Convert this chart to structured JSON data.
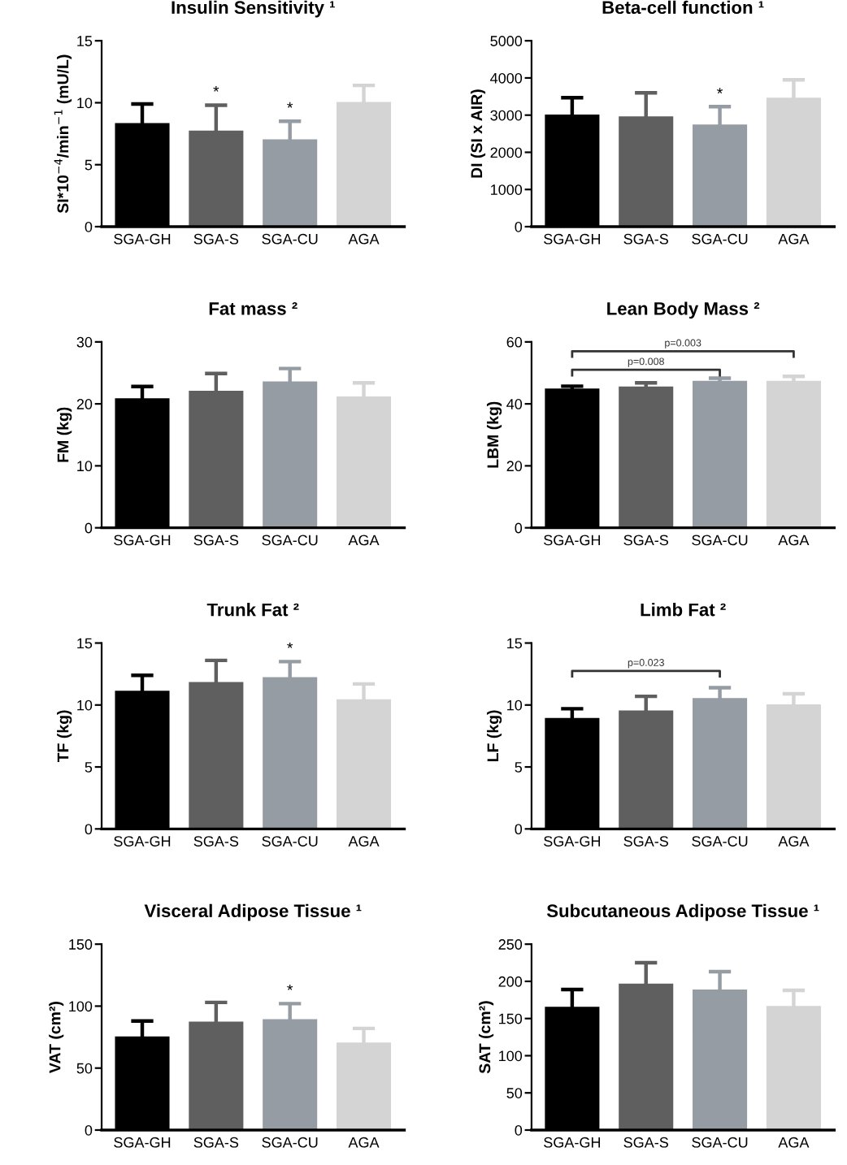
{
  "chart_data": [
    {
      "type": "bar",
      "title": "Insulin Sensitivity ¹",
      "ylabel": "SI*10$^{−4}$/min$^{−1}$ (mU/L)",
      "categories": [
        "SGA-GH",
        "SGA-S",
        "SGA-CU",
        "AGA"
      ],
      "values": [
        8.3,
        7.7,
        7.0,
        10.0
      ],
      "colors": [
        "#000000",
        "#5f5f5f",
        "#969ca4",
        "#d4d4d4"
      ],
      "errors": [
        [
          8.3,
          9.9
        ],
        [
          7.7,
          9.8
        ],
        [
          7.0,
          8.5
        ],
        [
          10.0,
          11.4
        ]
      ],
      "ylim": [
        0,
        15
      ],
      "yticks": [
        0,
        5,
        10,
        15
      ],
      "grid": false,
      "legend": false,
      "annotations": [
        {
          "text": "*",
          "x": "SGA-S",
          "y": 10.2
        },
        {
          "text": "*",
          "x": "SGA-CU",
          "y": 8.9
        }
      ]
    },
    {
      "type": "bar",
      "title": "Beta-cell function ¹",
      "ylabel": "DI (SI x AIR)",
      "categories": [
        "SGA-GH",
        "SGA-S",
        "SGA-CU",
        "AGA"
      ],
      "values": [
        3000,
        2950,
        2730,
        3450
      ],
      "colors": [
        "#000000",
        "#5f5f5f",
        "#969ca4",
        "#d4d4d4"
      ],
      "errors": [
        [
          3000,
          3470
        ],
        [
          2950,
          3600
        ],
        [
          2730,
          3230
        ],
        [
          3450,
          3950
        ]
      ],
      "ylim": [
        0,
        5000
      ],
      "yticks": [
        0,
        1000,
        2000,
        3000,
        4000,
        5000
      ],
      "grid": false,
      "legend": false,
      "annotations": [
        {
          "text": "*",
          "x": "SGA-CU",
          "y": 3350
        }
      ]
    },
    {
      "type": "bar",
      "title": "Fat mass ²",
      "ylabel": "FM (kg)",
      "categories": [
        "SGA-GH",
        "SGA-S",
        "SGA-CU",
        "AGA"
      ],
      "values": [
        20.8,
        22.0,
        23.5,
        21.1
      ],
      "colors": [
        "#000000",
        "#5f5f5f",
        "#969ca4",
        "#d4d4d4"
      ],
      "errors": [
        [
          20.8,
          22.8
        ],
        [
          22.0,
          24.9
        ],
        [
          23.5,
          25.7
        ],
        [
          21.1,
          23.4
        ]
      ],
      "ylim": [
        0,
        30
      ],
      "yticks": [
        0,
        10,
        20,
        30
      ],
      "grid": false,
      "legend": false
    },
    {
      "type": "bar",
      "title": "Lean Body Mass ²",
      "ylabel": "LBM (kg)",
      "categories": [
        "SGA-GH",
        "SGA-S",
        "SGA-CU",
        "AGA"
      ],
      "values": [
        44.7,
        45.4,
        47.2,
        47.2
      ],
      "colors": [
        "#000000",
        "#5f5f5f",
        "#969ca4",
        "#d4d4d4"
      ],
      "errors": [
        [
          44.7,
          45.7
        ],
        [
          45.4,
          46.8
        ],
        [
          47.2,
          48.3
        ],
        [
          47.2,
          48.9
        ]
      ],
      "ylim": [
        0,
        60
      ],
      "yticks": [
        0,
        20,
        40,
        60
      ],
      "grid": false,
      "legend": false,
      "annotations": [
        "p=0.008",
        "p=0.003"
      ]
    },
    {
      "type": "bar",
      "title": "Trunk Fat ²",
      "ylabel": "TF (kg)",
      "categories": [
        "SGA-GH",
        "SGA-S",
        "SGA-CU",
        "AGA"
      ],
      "values": [
        11.1,
        11.8,
        12.2,
        10.4
      ],
      "colors": [
        "#000000",
        "#5f5f5f",
        "#969ca4",
        "#d4d4d4"
      ],
      "errors": [
        [
          11.1,
          12.4
        ],
        [
          11.8,
          13.6
        ],
        [
          12.2,
          13.5
        ],
        [
          10.4,
          11.7
        ]
      ],
      "ylim": [
        0,
        15
      ],
      "yticks": [
        0,
        5,
        10,
        15
      ],
      "grid": false,
      "legend": false,
      "annotations": [
        {
          "text": "*",
          "x": "SGA-CU",
          "y": 13.9
        }
      ]
    },
    {
      "type": "bar",
      "title": "Limb Fat ²",
      "ylabel": "LF (kg)",
      "categories": [
        "SGA-GH",
        "SGA-S",
        "SGA-CU",
        "AGA"
      ],
      "values": [
        8.9,
        9.5,
        10.5,
        10.0
      ],
      "colors": [
        "#000000",
        "#5f5f5f",
        "#969ca4",
        "#d4d4d4"
      ],
      "errors": [
        [
          8.9,
          9.7
        ],
        [
          9.5,
          10.7
        ],
        [
          10.5,
          11.4
        ],
        [
          10.0,
          10.9
        ]
      ],
      "ylim": [
        0,
        15
      ],
      "yticks": [
        0,
        5,
        10,
        15
      ],
      "grid": false,
      "legend": false,
      "annotations": [
        "p=0.023"
      ]
    },
    {
      "type": "bar",
      "title": "Visceral Adipose Tissue ¹",
      "ylabel": "VAT (cm²)",
      "categories": [
        "SGA-GH",
        "SGA-S",
        "SGA-CU",
        "AGA"
      ],
      "values": [
        75,
        87,
        89,
        70
      ],
      "colors": [
        "#000000",
        "#5f5f5f",
        "#969ca4",
        "#d4d4d4"
      ],
      "errors": [
        [
          75,
          88
        ],
        [
          87,
          103
        ],
        [
          89,
          102
        ],
        [
          70,
          82
        ]
      ],
      "ylim": [
        0,
        150
      ],
      "yticks": [
        0,
        50,
        100,
        150
      ],
      "grid": false,
      "legend": false,
      "annotations": [
        {
          "text": "*",
          "x": "SGA-CU",
          "y": 106
        }
      ]
    },
    {
      "type": "bar",
      "title": "Subcutaneous Adipose Tissue ¹",
      "ylabel": "SAT (cm²)",
      "categories": [
        "SGA-GH",
        "SGA-S",
        "SGA-CU",
        "AGA"
      ],
      "values": [
        165,
        196,
        188,
        166
      ],
      "colors": [
        "#000000",
        "#5f5f5f",
        "#969ca4",
        "#d4d4d4"
      ],
      "errors": [
        [
          165,
          189
        ],
        [
          196,
          225
        ],
        [
          188,
          213
        ],
        [
          166,
          188
        ]
      ],
      "ylim": [
        0,
        250
      ],
      "yticks": [
        0,
        50,
        100,
        150,
        200,
        250
      ],
      "grid": false,
      "legend": false
    }
  ]
}
